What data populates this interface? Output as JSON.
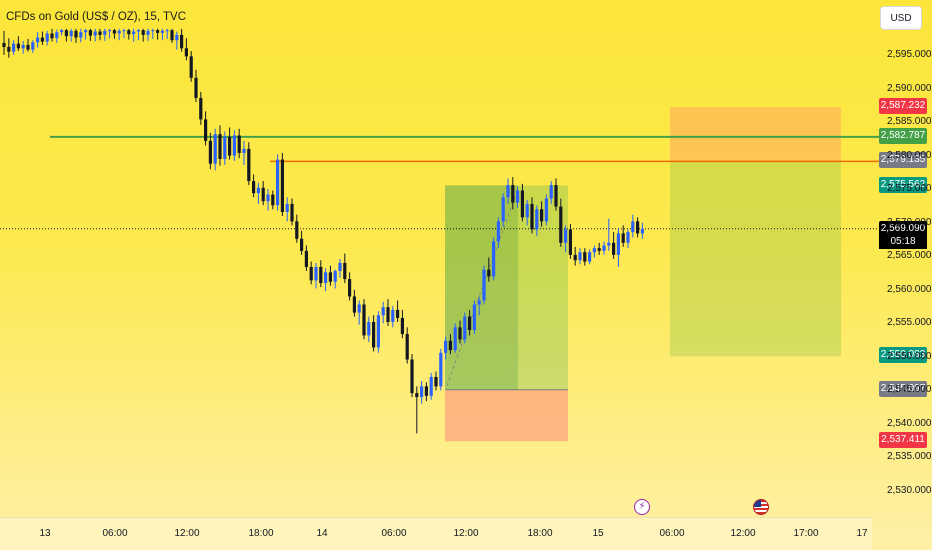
{
  "chart_data": {
    "type": "candlestick",
    "title": "CFDs on Gold (US$ / OZ), 15, TVC",
    "currency": "USD",
    "y_ticks": [
      "2,595.000",
      "2,590.000",
      "2,585.000",
      "2,580.000",
      "2,575.000",
      "2,570.000",
      "2,565.000",
      "2,560.000",
      "2,555.000",
      "2,550.000",
      "2,545.000",
      "2,540.000",
      "2,535.000",
      "2,530.000"
    ],
    "x_ticks": [
      "13",
      "06:00",
      "12:00",
      "18:00",
      "14",
      "06:00",
      "12:00",
      "18:00",
      "15",
      "06:00",
      "12:00",
      "17:00",
      "17"
    ],
    "ylim": [
      2528,
      2598
    ],
    "price_labels": {
      "stop_top": "2,587.232",
      "green_line": "2,582.787",
      "orange_line": "2,579.135",
      "target_left": "2,575.562",
      "current": "2,569.090",
      "target_right": "2,550.083",
      "entry_left": "2,545.097",
      "stop_left": "2,537.411"
    },
    "countdown": "05:18",
    "colors": {
      "up": "#2962ff",
      "down": "#131722",
      "green_line": "#43a047",
      "orange_line": "#ef6c00",
      "stop_badge": "#f23645",
      "target_badge": "#089981",
      "gray_badge": "#787b86"
    },
    "levels": {
      "green_line": 2582.787,
      "orange_line": 2579.135,
      "current": 2569.09
    },
    "long_position": {
      "entry": 2545.097,
      "target": 2575.562,
      "stop": 2537.411
    },
    "short_position": {
      "entry": 2579.135,
      "target": 2550.083,
      "stop": 2587.232
    },
    "candles": [
      {
        "o": 2596.8,
        "h": 2598.6,
        "l": 2595.0,
        "c": 2596.2
      },
      {
        "o": 2596.2,
        "h": 2597.5,
        "l": 2594.6,
        "c": 2595.5
      },
      {
        "o": 2595.5,
        "h": 2597.2,
        "l": 2595.0,
        "c": 2596.7
      },
      {
        "o": 2596.7,
        "h": 2597.8,
        "l": 2595.6,
        "c": 2596.0
      },
      {
        "o": 2596.0,
        "h": 2597.1,
        "l": 2595.2,
        "c": 2596.5
      },
      {
        "o": 2596.5,
        "h": 2597.4,
        "l": 2595.5,
        "c": 2595.8
      },
      {
        "o": 2595.8,
        "h": 2597.2,
        "l": 2595.3,
        "c": 2596.9
      },
      {
        "o": 2596.9,
        "h": 2598.4,
        "l": 2596.1,
        "c": 2597.6
      },
      {
        "o": 2597.6,
        "h": 2598.5,
        "l": 2596.5,
        "c": 2597.0
      },
      {
        "o": 2597.0,
        "h": 2598.6,
        "l": 2596.4,
        "c": 2598.2
      },
      {
        "o": 2598.2,
        "h": 2598.9,
        "l": 2597.0,
        "c": 2597.5
      },
      {
        "o": 2597.5,
        "h": 2598.8,
        "l": 2596.8,
        "c": 2598.4
      },
      {
        "o": 2598.4,
        "h": 2598.9,
        "l": 2597.9,
        "c": 2598.7
      },
      {
        "o": 2598.7,
        "h": 2598.9,
        "l": 2597.0,
        "c": 2597.8
      },
      {
        "o": 2597.8,
        "h": 2598.9,
        "l": 2597.0,
        "c": 2598.6
      },
      {
        "o": 2598.6,
        "h": 2598.9,
        "l": 2596.8,
        "c": 2597.6
      },
      {
        "o": 2597.6,
        "h": 2598.9,
        "l": 2596.9,
        "c": 2598.4
      },
      {
        "o": 2598.4,
        "h": 2598.9,
        "l": 2597.3,
        "c": 2598.7
      },
      {
        "o": 2598.7,
        "h": 2598.9,
        "l": 2597.1,
        "c": 2597.9
      },
      {
        "o": 2597.9,
        "h": 2598.9,
        "l": 2597.0,
        "c": 2598.5
      },
      {
        "o": 2598.5,
        "h": 2598.9,
        "l": 2597.2,
        "c": 2598.0
      },
      {
        "o": 2598.0,
        "h": 2598.9,
        "l": 2597.1,
        "c": 2598.6
      },
      {
        "o": 2598.6,
        "h": 2598.9,
        "l": 2597.5,
        "c": 2598.7
      },
      {
        "o": 2598.7,
        "h": 2598.9,
        "l": 2597.4,
        "c": 2598.2
      },
      {
        "o": 2598.2,
        "h": 2598.9,
        "l": 2597.2,
        "c": 2598.6
      },
      {
        "o": 2598.6,
        "h": 2598.9,
        "l": 2597.5,
        "c": 2598.7
      },
      {
        "o": 2598.7,
        "h": 2598.9,
        "l": 2597.3,
        "c": 2598.1
      },
      {
        "o": 2598.1,
        "h": 2598.9,
        "l": 2597.0,
        "c": 2598.5
      },
      {
        "o": 2598.5,
        "h": 2598.9,
        "l": 2597.2,
        "c": 2598.7
      },
      {
        "o": 2598.7,
        "h": 2598.9,
        "l": 2597.0,
        "c": 2598.0
      },
      {
        "o": 2598.0,
        "h": 2598.9,
        "l": 2597.1,
        "c": 2598.6
      },
      {
        "o": 2598.6,
        "h": 2598.9,
        "l": 2597.4,
        "c": 2598.7
      },
      {
        "o": 2598.7,
        "h": 2598.9,
        "l": 2597.3,
        "c": 2598.3
      },
      {
        "o": 2598.3,
        "h": 2598.9,
        "l": 2597.2,
        "c": 2598.6
      },
      {
        "o": 2598.6,
        "h": 2598.9,
        "l": 2597.4,
        "c": 2598.7
      },
      {
        "o": 2598.7,
        "h": 2598.9,
        "l": 2596.8,
        "c": 2597.2
      },
      {
        "o": 2597.2,
        "h": 2598.5,
        "l": 2595.8,
        "c": 2598.0
      },
      {
        "o": 2598.0,
        "h": 2598.9,
        "l": 2595.5,
        "c": 2596.0
      },
      {
        "o": 2596.0,
        "h": 2597.5,
        "l": 2594.2,
        "c": 2594.8
      },
      {
        "o": 2594.8,
        "h": 2595.6,
        "l": 2591.0,
        "c": 2591.6
      },
      {
        "o": 2591.6,
        "h": 2592.8,
        "l": 2588.0,
        "c": 2588.6
      },
      {
        "o": 2588.6,
        "h": 2589.5,
        "l": 2584.6,
        "c": 2585.4
      },
      {
        "o": 2585.4,
        "h": 2586.6,
        "l": 2581.5,
        "c": 2582.2
      },
      {
        "o": 2582.2,
        "h": 2583.4,
        "l": 2578.0,
        "c": 2578.8
      },
      {
        "o": 2578.8,
        "h": 2584.0,
        "l": 2577.8,
        "c": 2583.2
      },
      {
        "o": 2583.2,
        "h": 2584.5,
        "l": 2578.5,
        "c": 2579.5
      },
      {
        "o": 2579.5,
        "h": 2583.6,
        "l": 2578.6,
        "c": 2582.8
      },
      {
        "o": 2582.8,
        "h": 2584.2,
        "l": 2579.4,
        "c": 2580.0
      },
      {
        "o": 2580.0,
        "h": 2583.8,
        "l": 2579.2,
        "c": 2583.0
      },
      {
        "o": 2583.0,
        "h": 2584.0,
        "l": 2579.6,
        "c": 2580.4
      },
      {
        "o": 2580.4,
        "h": 2582.2,
        "l": 2578.6,
        "c": 2581.0
      },
      {
        "o": 2581.0,
        "h": 2582.0,
        "l": 2575.6,
        "c": 2576.2
      },
      {
        "o": 2576.2,
        "h": 2577.2,
        "l": 2573.8,
        "c": 2574.4
      },
      {
        "o": 2574.4,
        "h": 2576.0,
        "l": 2572.8,
        "c": 2575.2
      },
      {
        "o": 2575.2,
        "h": 2576.2,
        "l": 2572.6,
        "c": 2573.2
      },
      {
        "o": 2573.2,
        "h": 2575.0,
        "l": 2571.8,
        "c": 2574.2
      },
      {
        "o": 2574.2,
        "h": 2574.8,
        "l": 2572.0,
        "c": 2572.6
      },
      {
        "o": 2572.6,
        "h": 2580.2,
        "l": 2571.8,
        "c": 2579.4
      },
      {
        "o": 2579.4,
        "h": 2580.4,
        "l": 2571.0,
        "c": 2571.6
      },
      {
        "o": 2571.6,
        "h": 2573.8,
        "l": 2570.2,
        "c": 2572.8
      },
      {
        "o": 2572.8,
        "h": 2573.6,
        "l": 2569.6,
        "c": 2570.2
      },
      {
        "o": 2570.2,
        "h": 2571.2,
        "l": 2567.0,
        "c": 2567.6
      },
      {
        "o": 2567.6,
        "h": 2568.8,
        "l": 2565.2,
        "c": 2565.8
      },
      {
        "o": 2565.8,
        "h": 2566.6,
        "l": 2562.8,
        "c": 2563.4
      },
      {
        "o": 2563.4,
        "h": 2564.2,
        "l": 2560.8,
        "c": 2561.4
      },
      {
        "o": 2561.4,
        "h": 2564.0,
        "l": 2560.2,
        "c": 2563.4
      },
      {
        "o": 2563.4,
        "h": 2564.4,
        "l": 2560.4,
        "c": 2561.0
      },
      {
        "o": 2561.0,
        "h": 2563.2,
        "l": 2559.8,
        "c": 2562.6
      },
      {
        "o": 2562.6,
        "h": 2563.6,
        "l": 2560.6,
        "c": 2561.2
      },
      {
        "o": 2561.2,
        "h": 2563.0,
        "l": 2560.2,
        "c": 2562.8
      },
      {
        "o": 2562.8,
        "h": 2564.6,
        "l": 2561.8,
        "c": 2564.0
      },
      {
        "o": 2564.0,
        "h": 2565.4,
        "l": 2561.0,
        "c": 2561.6
      },
      {
        "o": 2561.6,
        "h": 2562.6,
        "l": 2558.4,
        "c": 2559.0
      },
      {
        "o": 2559.0,
        "h": 2560.0,
        "l": 2556.0,
        "c": 2556.6
      },
      {
        "o": 2556.6,
        "h": 2558.4,
        "l": 2554.8,
        "c": 2557.8
      },
      {
        "o": 2557.8,
        "h": 2558.6,
        "l": 2552.6,
        "c": 2553.2
      },
      {
        "o": 2553.2,
        "h": 2556.0,
        "l": 2552.2,
        "c": 2555.2
      },
      {
        "o": 2555.2,
        "h": 2556.2,
        "l": 2550.8,
        "c": 2551.4
      },
      {
        "o": 2551.4,
        "h": 2556.8,
        "l": 2550.6,
        "c": 2556.2
      },
      {
        "o": 2556.2,
        "h": 2558.2,
        "l": 2555.0,
        "c": 2557.4
      },
      {
        "o": 2557.4,
        "h": 2558.6,
        "l": 2554.6,
        "c": 2555.2
      },
      {
        "o": 2555.2,
        "h": 2557.6,
        "l": 2554.4,
        "c": 2557.0
      },
      {
        "o": 2557.0,
        "h": 2558.4,
        "l": 2555.2,
        "c": 2555.8
      },
      {
        "o": 2555.8,
        "h": 2557.0,
        "l": 2552.8,
        "c": 2553.4
      },
      {
        "o": 2553.4,
        "h": 2554.4,
        "l": 2549.0,
        "c": 2549.6
      },
      {
        "o": 2549.6,
        "h": 2550.4,
        "l": 2544.0,
        "c": 2544.6
      },
      {
        "o": 2544.6,
        "h": 2545.6,
        "l": 2538.6,
        "c": 2544.0
      },
      {
        "o": 2544.0,
        "h": 2546.4,
        "l": 2543.0,
        "c": 2545.6
      },
      {
        "o": 2545.6,
        "h": 2546.2,
        "l": 2543.4,
        "c": 2544.2
      },
      {
        "o": 2544.2,
        "h": 2547.6,
        "l": 2543.6,
        "c": 2547.0
      },
      {
        "o": 2547.0,
        "h": 2547.8,
        "l": 2545.0,
        "c": 2545.6
      },
      {
        "o": 2545.6,
        "h": 2551.2,
        "l": 2545.0,
        "c": 2550.6
      },
      {
        "o": 2550.6,
        "h": 2553.0,
        "l": 2549.6,
        "c": 2552.4
      },
      {
        "o": 2552.4,
        "h": 2553.4,
        "l": 2550.4,
        "c": 2551.0
      },
      {
        "o": 2551.0,
        "h": 2555.0,
        "l": 2550.6,
        "c": 2554.4
      },
      {
        "o": 2554.4,
        "h": 2555.4,
        "l": 2552.0,
        "c": 2552.6
      },
      {
        "o": 2552.6,
        "h": 2556.6,
        "l": 2552.0,
        "c": 2556.0
      },
      {
        "o": 2556.0,
        "h": 2557.0,
        "l": 2553.2,
        "c": 2554.0
      },
      {
        "o": 2554.0,
        "h": 2558.4,
        "l": 2553.4,
        "c": 2557.8
      },
      {
        "o": 2557.8,
        "h": 2559.0,
        "l": 2556.2,
        "c": 2558.4
      },
      {
        "o": 2558.4,
        "h": 2563.6,
        "l": 2557.8,
        "c": 2563.0
      },
      {
        "o": 2563.0,
        "h": 2564.8,
        "l": 2561.2,
        "c": 2562.0
      },
      {
        "o": 2562.0,
        "h": 2567.8,
        "l": 2561.4,
        "c": 2567.2
      },
      {
        "o": 2567.2,
        "h": 2570.8,
        "l": 2566.2,
        "c": 2570.2
      },
      {
        "o": 2570.2,
        "h": 2574.4,
        "l": 2569.4,
        "c": 2573.8
      },
      {
        "o": 2573.8,
        "h": 2576.6,
        "l": 2572.8,
        "c": 2575.6
      },
      {
        "o": 2575.6,
        "h": 2576.8,
        "l": 2572.0,
        "c": 2573.0
      },
      {
        "o": 2573.0,
        "h": 2575.4,
        "l": 2572.2,
        "c": 2574.8
      },
      {
        "o": 2574.8,
        "h": 2575.8,
        "l": 2570.2,
        "c": 2570.8
      },
      {
        "o": 2570.8,
        "h": 2573.4,
        "l": 2569.6,
        "c": 2572.8
      },
      {
        "o": 2572.8,
        "h": 2573.8,
        "l": 2568.4,
        "c": 2569.0
      },
      {
        "o": 2569.0,
        "h": 2572.6,
        "l": 2568.0,
        "c": 2572.0
      },
      {
        "o": 2572.0,
        "h": 2573.2,
        "l": 2569.4,
        "c": 2570.2
      },
      {
        "o": 2570.2,
        "h": 2574.2,
        "l": 2569.6,
        "c": 2573.6
      },
      {
        "o": 2573.6,
        "h": 2576.2,
        "l": 2572.8,
        "c": 2575.6
      },
      {
        "o": 2575.6,
        "h": 2576.6,
        "l": 2571.8,
        "c": 2572.4
      },
      {
        "o": 2572.4,
        "h": 2573.6,
        "l": 2566.4,
        "c": 2567.0
      },
      {
        "o": 2567.0,
        "h": 2569.6,
        "l": 2565.6,
        "c": 2569.0
      },
      {
        "o": 2569.0,
        "h": 2569.8,
        "l": 2564.6,
        "c": 2565.2
      },
      {
        "o": 2565.2,
        "h": 2566.4,
        "l": 2563.6,
        "c": 2564.4
      },
      {
        "o": 2564.4,
        "h": 2566.2,
        "l": 2563.8,
        "c": 2565.6
      },
      {
        "o": 2565.6,
        "h": 2566.2,
        "l": 2563.6,
        "c": 2564.2
      },
      {
        "o": 2564.2,
        "h": 2566.0,
        "l": 2563.8,
        "c": 2565.6
      },
      {
        "o": 2565.6,
        "h": 2566.6,
        "l": 2564.8,
        "c": 2566.2
      },
      {
        "o": 2566.2,
        "h": 2567.0,
        "l": 2565.2,
        "c": 2565.8
      },
      {
        "o": 2565.8,
        "h": 2567.2,
        "l": 2565.2,
        "c": 2566.6
      },
      {
        "o": 2566.6,
        "h": 2570.6,
        "l": 2565.8,
        "c": 2567.0
      },
      {
        "o": 2567.0,
        "h": 2568.6,
        "l": 2564.6,
        "c": 2565.2
      },
      {
        "o": 2565.2,
        "h": 2569.2,
        "l": 2563.4,
        "c": 2568.4
      },
      {
        "o": 2568.4,
        "h": 2569.6,
        "l": 2566.4,
        "c": 2567.0
      },
      {
        "o": 2567.0,
        "h": 2569.0,
        "l": 2566.2,
        "c": 2568.6
      },
      {
        "o": 2568.6,
        "h": 2571.2,
        "l": 2567.8,
        "c": 2570.2
      },
      {
        "o": 2570.2,
        "h": 2570.8,
        "l": 2567.8,
        "c": 2568.4
      },
      {
        "o": 2568.4,
        "h": 2570.0,
        "l": 2567.6,
        "c": 2569.09
      }
    ]
  }
}
